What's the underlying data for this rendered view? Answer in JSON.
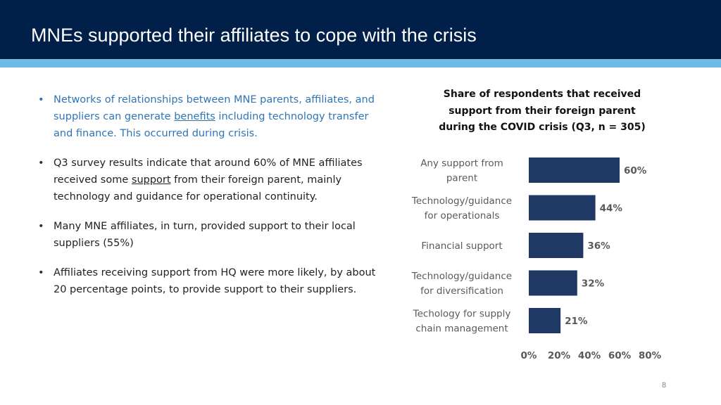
{
  "slide": {
    "title": "MNEs supported their affiliates to cope with the crisis",
    "page_number": "8"
  },
  "bullets": [
    {
      "before": "Networks of relationships between MNE parents, affiliates, and suppliers can generate ",
      "link": "benefits",
      "after": " including technology transfer and finance. This occurred during crisis."
    },
    {
      "before": "Q3 survey results indicate that around 60% of MNE affiliates received some ",
      "link": "support",
      "after": " from their foreign parent, mainly technology and guidance for operational continuity."
    },
    {
      "text": "Many MNE affiliates, in turn, provided support to their local suppliers (55%)"
    },
    {
      "text": "Affiliates receiving support from HQ were more likely, by about 20 percentage points, to provide support to their suppliers."
    }
  ],
  "colors": {
    "header": "#00204a",
    "accent": "#71b9e6",
    "bar": "#203864",
    "bullet_blue": "#2e75b6"
  },
  "chart_data": {
    "type": "bar",
    "orientation": "horizontal",
    "title": "Share of respondents that received support from their foreign parent during the COVID crisis (Q3, n = 305)",
    "categories": [
      [
        "Any support from",
        "parent"
      ],
      [
        "Technology/guidance",
        "for operationals"
      ],
      [
        "Financial support"
      ],
      [
        "Technology/guidance",
        "for diversification"
      ],
      [
        "Techology for supply",
        "chain management"
      ]
    ],
    "values": [
      60,
      44,
      36,
      32,
      21
    ],
    "data_labels": [
      "60%",
      "44%",
      "36%",
      "32%",
      "21%"
    ],
    "xlim": [
      0,
      80
    ],
    "ticks": [
      "0%",
      "20%",
      "40%",
      "60%",
      "80%"
    ],
    "tick_values": [
      0,
      20,
      40,
      60,
      80
    ],
    "xlabel": "",
    "ylabel": "",
    "grid": false
  }
}
